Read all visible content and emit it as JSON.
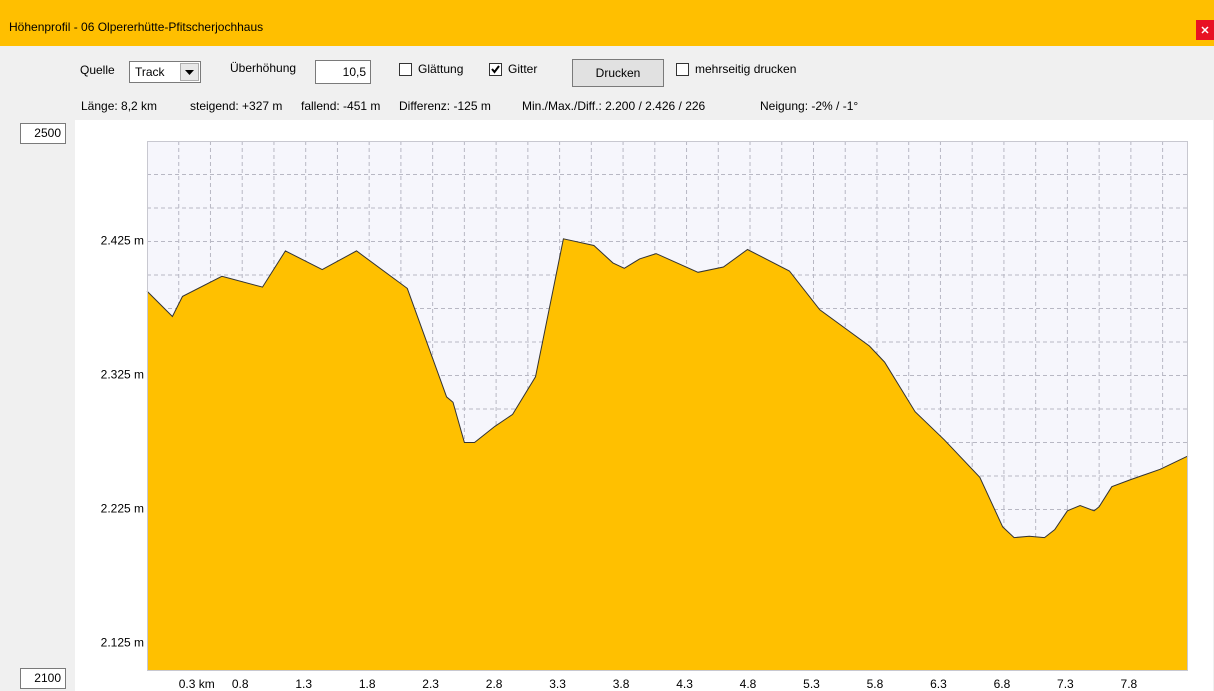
{
  "window": {
    "title": "Höhenprofil - 06 Olpererhütte-Pfitscherjochhaus"
  },
  "toolbar": {
    "source_label": "Quelle",
    "source_value": "Track",
    "exaggeration_label": "Überhöhung",
    "exaggeration_value": "10,5",
    "smoothing": {
      "label": "Glättung",
      "checked": false
    },
    "grid": {
      "label": "Gitter",
      "checked": true
    },
    "print_button": "Drucken",
    "multipage": {
      "label": "mehrseitig drucken",
      "checked": false
    }
  },
  "stats": [
    "Länge: 8,2 km",
    "steigend: +327 m",
    "fallend: -451 m",
    "Differenz: -125 m",
    "Min./Max./Diff.: 2.200 / 2.426 / 226",
    "Neigung: -2% / -1°"
  ],
  "range_inputs": {
    "top": "2500",
    "bottom": "2100"
  },
  "chart_data": {
    "type": "area",
    "color": "#ffc000",
    "x": [
      0,
      0.2,
      0.28,
      0.59,
      0.91,
      1.09,
      1.38,
      1.65,
      2.05,
      2.36,
      2.41,
      2.5,
      2.58,
      2.74,
      2.88,
      3.06,
      3.28,
      3.52,
      3.67,
      3.76,
      3.88,
      4.01,
      4.34,
      4.54,
      4.73,
      5.06,
      5.3,
      5.69,
      5.81,
      6.05,
      6.28,
      6.56,
      6.74,
      6.83,
      6.95,
      7.07,
      7.15,
      7.25,
      7.35,
      7.46,
      7.5,
      7.6,
      7.74,
      7.98,
      8.2
    ],
    "values": [
      2388,
      2369,
      2384,
      2399,
      2391,
      2418,
      2404,
      2418,
      2390,
      2309,
      2305,
      2275,
      2275,
      2287,
      2296,
      2324,
      2427,
      2422,
      2409,
      2405,
      2412,
      2416,
      2402,
      2406,
      2419,
      2403,
      2374,
      2347,
      2335,
      2298,
      2277,
      2249,
      2212,
      2204,
      2205,
      2204,
      2210,
      2224,
      2228,
      2224,
      2227,
      2242,
      2247,
      2255,
      2265
    ],
    "xlim": [
      0,
      8.2
    ],
    "ylim": [
      2100,
      2500
    ],
    "xticks": [
      {
        "value": 0.25,
        "label": "0.3 km"
      },
      {
        "value": 0.75,
        "label": "0.8"
      },
      {
        "value": 1.25,
        "label": "1.3"
      },
      {
        "value": 1.75,
        "label": "1.8"
      },
      {
        "value": 2.25,
        "label": "2.3"
      },
      {
        "value": 2.75,
        "label": "2.8"
      },
      {
        "value": 3.25,
        "label": "3.3"
      },
      {
        "value": 3.75,
        "label": "3.8"
      },
      {
        "value": 4.25,
        "label": "4.3"
      },
      {
        "value": 4.75,
        "label": "4.8"
      },
      {
        "value": 5.25,
        "label": "5.3"
      },
      {
        "value": 5.75,
        "label": "5.8"
      },
      {
        "value": 6.25,
        "label": "6.3"
      },
      {
        "value": 6.75,
        "label": "6.8"
      },
      {
        "value": 7.25,
        "label": "7.3"
      },
      {
        "value": 7.75,
        "label": "7.8"
      }
    ],
    "minor_xticks": [
      0.5,
      1,
      1.5,
      2,
      2.5,
      3,
      3.5,
      4,
      4.5,
      5,
      5.5,
      6,
      6.5,
      7,
      7.5,
      8
    ],
    "yticks": [
      {
        "value": 2125,
        "label": "2.125 m"
      },
      {
        "value": 2225,
        "label": "2.225 m"
      },
      {
        "value": 2325,
        "label": "2.325 m"
      },
      {
        "value": 2425,
        "label": "2.425 m"
      }
    ],
    "minor_yticks": [
      2150,
      2175,
      2200,
      2250,
      2275,
      2300,
      2350,
      2375,
      2400,
      2450,
      2475
    ],
    "grid": true
  }
}
